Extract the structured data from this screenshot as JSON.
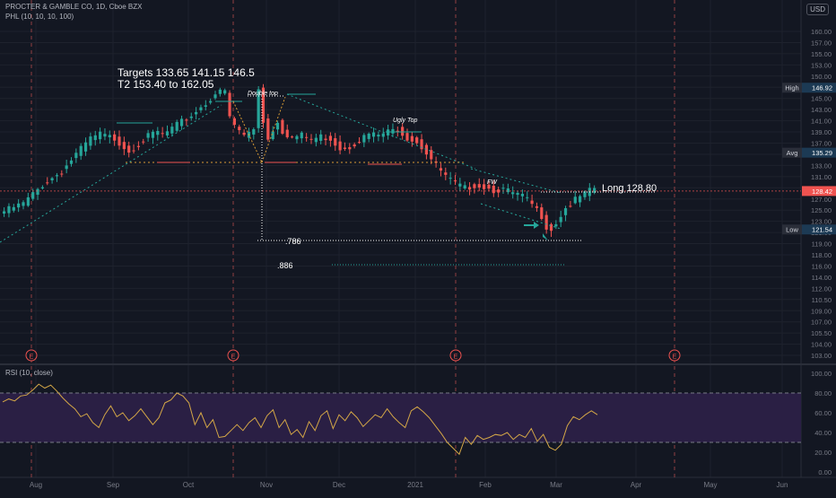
{
  "header": {
    "symbol": "PROCTER & GAMBLE CO, 1D, Cboe BZX",
    "indicator": "PHL (10, 10, 10, 100)",
    "currency": "USD"
  },
  "annotations": {
    "targets_line1": "Targets 133.65 141.15  146.5",
    "targets_line2": "T2  153.40 to 162.05",
    "double_top": "Double top",
    "ugly_top": "Ugly Top",
    "fw": "FW",
    "fib_786": ".786",
    "fib_886": ".886",
    "long": "Long 128.80"
  },
  "colors": {
    "background": "#131722",
    "up": "#26a69a",
    "down": "#ef5350",
    "grid": "#1e222d",
    "rsi_line": "#d4a747",
    "rsi_band": "#2a1f44",
    "high_label": "#1c3a54",
    "last_price": "#ef5350"
  },
  "price_labels": {
    "high": {
      "label": "High",
      "value": "146.92"
    },
    "avg": {
      "label": "Avg",
      "value": "135.29"
    },
    "low": {
      "label": "Low",
      "value": "121.54"
    },
    "last": {
      "value": "128.42"
    }
  },
  "rsi_title": "RSI (10, close)",
  "earnings_marker": "E",
  "chart_data": [
    {
      "type": "candlestick",
      "x_ticks": [
        "Aug",
        "Sep",
        "Oct",
        "Nov",
        "Dec",
        "2021",
        "Feb",
        "Mar",
        "Apr",
        "May",
        "Jun"
      ],
      "y_ticks": [
        "160.00",
        "157.00",
        "155.00",
        "153.00",
        "150.00",
        "147.00",
        "145.00",
        "143.00",
        "141.00",
        "139.00",
        "137.00",
        "135.00",
        "133.00",
        "131.00",
        "129.00",
        "127.00",
        "125.00",
        "123.00",
        "121.00",
        "119.00",
        "118.00",
        "116.00",
        "114.00",
        "112.00",
        "110.50",
        "109.00",
        "107.00",
        "105.50",
        "104.00",
        "103.00"
      ],
      "ylim": [
        103.0,
        163.0
      ],
      "close_path": [
        [
          0,
          124.8
        ],
        [
          4,
          126.2
        ],
        [
          8,
          129.5
        ],
        [
          12,
          132.0
        ],
        [
          15,
          135.0
        ],
        [
          18,
          137.8
        ],
        [
          20,
          138.6
        ],
        [
          23,
          137.8
        ],
        [
          26,
          135.6
        ],
        [
          28,
          136.8
        ],
        [
          30,
          138.2
        ],
        [
          32,
          139.0
        ],
        [
          33,
          138.4
        ],
        [
          35,
          139.6
        ],
        [
          37,
          140.8
        ],
        [
          39,
          141.9
        ],
        [
          40,
          142.8
        ],
        [
          42,
          144.1
        ],
        [
          44,
          145.9
        ],
        [
          46,
          146.3
        ],
        [
          47,
          141.5
        ],
        [
          48,
          140.2
        ],
        [
          50,
          138.3
        ],
        [
          52,
          139.6
        ],
        [
          53,
          146.9
        ],
        [
          54,
          141.0
        ],
        [
          55,
          137.7
        ],
        [
          57,
          141.1
        ],
        [
          58,
          139.1
        ],
        [
          60,
          138.0
        ],
        [
          62,
          138.4
        ],
        [
          64,
          137.6
        ],
        [
          66,
          138.2
        ],
        [
          68,
          137.8
        ],
        [
          70,
          136.1
        ],
        [
          72,
          136.4
        ],
        [
          74,
          137.6
        ],
        [
          76,
          138.6
        ],
        [
          78,
          138.4
        ],
        [
          80,
          139.0
        ],
        [
          82,
          139.5
        ],
        [
          84,
          138.0
        ],
        [
          86,
          137.3
        ],
        [
          88,
          135.3
        ],
        [
          90,
          133.0
        ],
        [
          92,
          131.0
        ],
        [
          94,
          129.7
        ],
        [
          96,
          128.9
        ],
        [
          98,
          129.5
        ],
        [
          100,
          129.2
        ],
        [
          102,
          128.6
        ],
        [
          104,
          128.7
        ],
        [
          106,
          128.0
        ],
        [
          108,
          127.5
        ],
        [
          110,
          126.0
        ],
        [
          112,
          124.0
        ],
        [
          113,
          122.1
        ],
        [
          114,
          121.6
        ],
        [
          115,
          122.8
        ],
        [
          117,
          125.4
        ],
        [
          119,
          126.8
        ],
        [
          121,
          127.9
        ],
        [
          123,
          128.9
        ]
      ],
      "price_levels": {
        "high": 146.92,
        "avg": 135.29,
        "low": 121.54,
        "last": 128.42
      },
      "earnings_dates": [
        "Jul 30",
        "Oct 20",
        "Jan 20",
        "Apr 20"
      ]
    },
    {
      "type": "line",
      "title": "RSI (10, close)",
      "y_ticks": [
        "100.00",
        "80.00",
        "60.00",
        "40.00",
        "20.00",
        "0.00"
      ],
      "ylim": [
        0,
        100
      ],
      "band": [
        30,
        80
      ],
      "values": [
        71,
        74,
        72,
        77,
        78,
        83,
        89,
        85,
        88,
        82,
        75,
        69,
        64,
        56,
        59,
        50,
        45,
        58,
        67,
        56,
        60,
        52,
        57,
        64,
        56,
        48,
        55,
        70,
        73,
        80,
        77,
        70,
        48,
        60,
        45,
        53,
        35,
        36,
        42,
        48,
        42,
        50,
        55,
        45,
        57,
        63,
        45,
        53,
        38,
        43,
        35,
        51,
        42,
        57,
        62,
        44,
        58,
        52,
        61,
        55,
        46,
        52,
        58,
        55,
        64,
        56,
        50,
        45,
        62,
        66,
        61,
        55,
        47,
        39,
        30,
        24,
        18,
        35,
        28,
        37,
        33,
        35,
        38,
        37,
        40,
        33,
        38,
        35,
        44,
        31,
        38,
        25,
        22,
        28,
        47,
        56,
        53,
        58,
        62,
        58
      ]
    }
  ]
}
